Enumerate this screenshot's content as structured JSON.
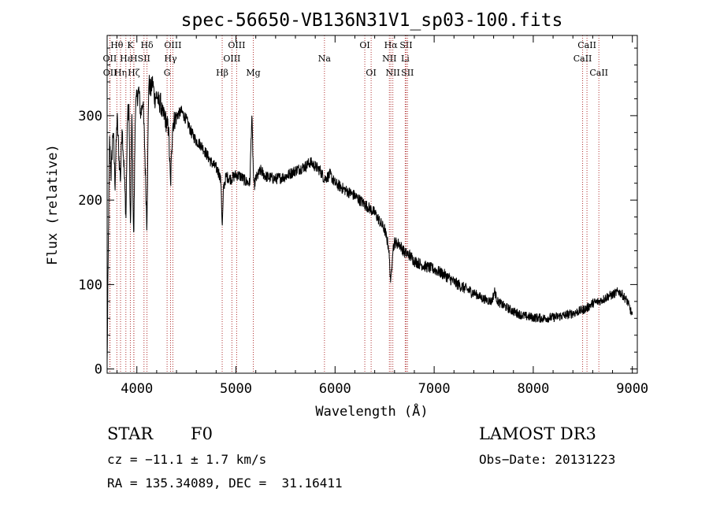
{
  "chart_data": {
    "type": "line",
    "title": "spec-56650-VB136N31V1_sp03-100.fits",
    "xlabel": "Wavelength (Å)",
    "ylabel": "Flux (relative)",
    "xlim": [
      3700,
      9050
    ],
    "ylim": [
      -5,
      395
    ],
    "x_ticks": [
      4000,
      5000,
      6000,
      7000,
      8000,
      9000
    ],
    "y_ticks": [
      0,
      100,
      200,
      300
    ],
    "spectrum_anchors": [
      [
        3700,
        5
      ],
      [
        3705,
        60
      ],
      [
        3712,
        150
      ],
      [
        3725,
        270
      ],
      [
        3740,
        230
      ],
      [
        3760,
        285
      ],
      [
        3780,
        220
      ],
      [
        3800,
        300
      ],
      [
        3820,
        250
      ],
      [
        3835,
        225
      ],
      [
        3850,
        290
      ],
      [
        3870,
        240
      ],
      [
        3890,
        180
      ],
      [
        3905,
        300
      ],
      [
        3920,
        310
      ],
      [
        3935,
        160
      ],
      [
        3950,
        300
      ],
      [
        3968,
        150
      ],
      [
        3985,
        310
      ],
      [
        4000,
        320
      ],
      [
        4020,
        330
      ],
      [
        4040,
        300
      ],
      [
        4060,
        320
      ],
      [
        4080,
        260
      ],
      [
        4101,
        170
      ],
      [
        4120,
        340
      ],
      [
        4140,
        330
      ],
      [
        4160,
        340
      ],
      [
        4180,
        320
      ],
      [
        4200,
        325
      ],
      [
        4220,
        315
      ],
      [
        4240,
        315
      ],
      [
        4260,
        300
      ],
      [
        4280,
        300
      ],
      [
        4300,
        290
      ],
      [
        4320,
        285
      ],
      [
        4340,
        215
      ],
      [
        4360,
        290
      ],
      [
        4400,
        300
      ],
      [
        4450,
        305
      ],
      [
        4500,
        295
      ],
      [
        4550,
        280
      ],
      [
        4600,
        270
      ],
      [
        4650,
        265
      ],
      [
        4700,
        255
      ],
      [
        4750,
        245
      ],
      [
        4800,
        238
      ],
      [
        4830,
        232
      ],
      [
        4850,
        220
      ],
      [
        4861,
        165
      ],
      [
        4875,
        215
      ],
      [
        4900,
        228
      ],
      [
        4950,
        225
      ],
      [
        5000,
        230
      ],
      [
        5050,
        228
      ],
      [
        5100,
        222
      ],
      [
        5140,
        220
      ],
      [
        5160,
        300
      ],
      [
        5180,
        215
      ],
      [
        5200,
        225
      ],
      [
        5250,
        235
      ],
      [
        5300,
        228
      ],
      [
        5400,
        225
      ],
      [
        5500,
        228
      ],
      [
        5600,
        235
      ],
      [
        5700,
        240
      ],
      [
        5750,
        245
      ],
      [
        5800,
        240
      ],
      [
        5850,
        235
      ],
      [
        5893,
        225
      ],
      [
        5950,
        230
      ],
      [
        6000,
        220
      ],
      [
        6100,
        212
      ],
      [
        6200,
        205
      ],
      [
        6300,
        195
      ],
      [
        6400,
        185
      ],
      [
        6500,
        165
      ],
      [
        6540,
        145
      ],
      [
        6563,
        100
      ],
      [
        6580,
        140
      ],
      [
        6600,
        150
      ],
      [
        6650,
        148
      ],
      [
        6700,
        138
      ],
      [
        6750,
        135
      ],
      [
        6800,
        128
      ],
      [
        6900,
        122
      ],
      [
        7000,
        118
      ],
      [
        7100,
        112
      ],
      [
        7200,
        103
      ],
      [
        7300,
        96
      ],
      [
        7400,
        90
      ],
      [
        7500,
        83
      ],
      [
        7580,
        80
      ],
      [
        7610,
        92
      ],
      [
        7640,
        80
      ],
      [
        7700,
        75
      ],
      [
        7800,
        68
      ],
      [
        7900,
        63
      ],
      [
        8000,
        61
      ],
      [
        8100,
        60
      ],
      [
        8200,
        61
      ],
      [
        8300,
        63
      ],
      [
        8400,
        66
      ],
      [
        8500,
        70
      ],
      [
        8540,
        72
      ],
      [
        8600,
        78
      ],
      [
        8660,
        80
      ],
      [
        8700,
        82
      ],
      [
        8750,
        86
      ],
      [
        8800,
        88
      ],
      [
        8860,
        92
      ],
      [
        8900,
        88
      ],
      [
        8950,
        80
      ],
      [
        8980,
        70
      ],
      [
        9000,
        62
      ]
    ],
    "noise_amplitude": 7,
    "line_markers": [
      {
        "label": "Hθ",
        "wavelength": 3798,
        "row": 1
      },
      {
        "label": "OII",
        "wavelength": 3727,
        "row": 2
      },
      {
        "label": "OII",
        "wavelength": 3729,
        "row": 3
      },
      {
        "label": "Hη",
        "wavelength": 3835,
        "row": 3
      },
      {
        "label": "Hε",
        "wavelength": 3889,
        "row": 2
      },
      {
        "label": "K",
        "wavelength": 3934,
        "row": 1
      },
      {
        "label": "H",
        "wavelength": 3969,
        "row": 2
      },
      {
        "label": "Hζ",
        "wavelength": 3970,
        "row": 3
      },
      {
        "label": "SII",
        "wavelength": 4072,
        "row": 2
      },
      {
        "label": "Hδ",
        "wavelength": 4102,
        "row": 1
      },
      {
        "label": "OIII",
        "wavelength": 4363,
        "row": 1
      },
      {
        "label": "Hγ",
        "wavelength": 4340,
        "row": 2
      },
      {
        "label": "G",
        "wavelength": 4305,
        "row": 3
      },
      {
        "label": "Hβ",
        "wavelength": 4861,
        "row": 3
      },
      {
        "label": "OIII",
        "wavelength": 5007,
        "row": 1
      },
      {
        "label": "OIII",
        "wavelength": 4959,
        "row": 2
      },
      {
        "label": "Mg",
        "wavelength": 5175,
        "row": 3
      },
      {
        "label": "Na",
        "wavelength": 5893,
        "row": 2
      },
      {
        "label": "OI",
        "wavelength": 6300,
        "row": 1
      },
      {
        "label": "OI",
        "wavelength": 6364,
        "row": 3
      },
      {
        "label": "Hα",
        "wavelength": 6563,
        "row": 1
      },
      {
        "label": "NII",
        "wavelength": 6548,
        "row": 2
      },
      {
        "label": "NII",
        "wavelength": 6583,
        "row": 3
      },
      {
        "label": "SII",
        "wavelength": 6717,
        "row": 1
      },
      {
        "label": "Li",
        "wavelength": 6708,
        "row": 2
      },
      {
        "label": "SII",
        "wavelength": 6731,
        "row": 3
      },
      {
        "label": "CaII",
        "wavelength": 8542,
        "row": 1
      },
      {
        "label": "CaII",
        "wavelength": 8498,
        "row": 2
      },
      {
        "label": "CaII",
        "wavelength": 8662,
        "row": 3
      }
    ],
    "colors": {
      "spectrum": "#000000",
      "marker_line": "#b03030",
      "axis": "#000000"
    }
  },
  "info": {
    "object_class": "STAR",
    "subclass": "F0",
    "survey": "LAMOST DR3",
    "redshift": "cz = −11.1 ± 1.7 km/s",
    "obs_date": "Obs−Date: 20131223",
    "coords": "RA = 135.34089, DEC =  31.16411"
  }
}
